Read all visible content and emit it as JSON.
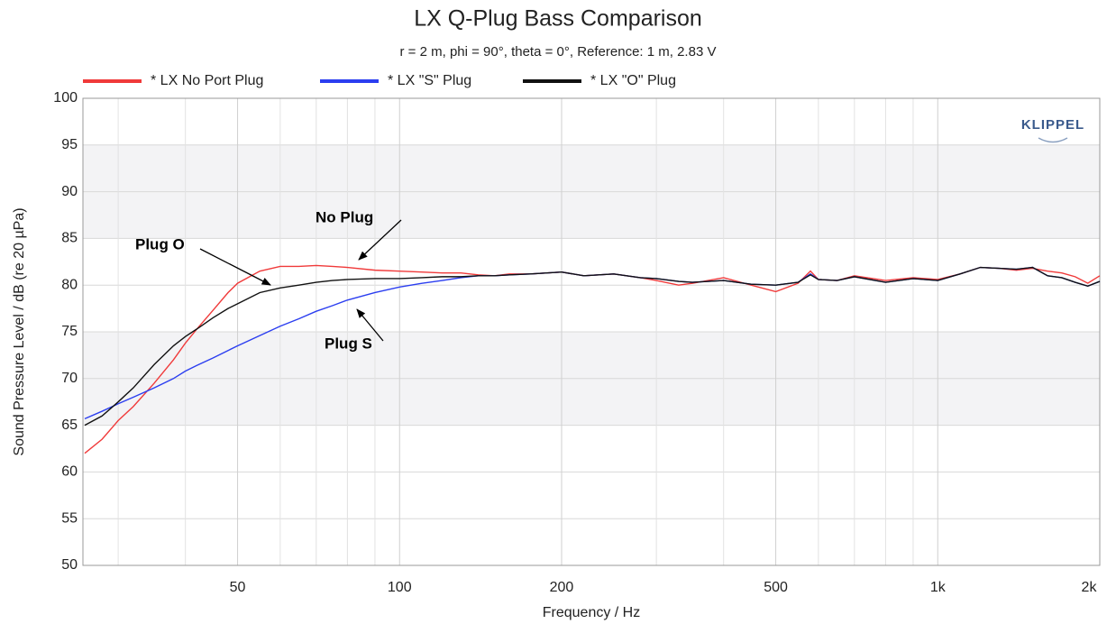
{
  "chart_data": {
    "type": "line",
    "title": "LX Q-Plug Bass Comparison",
    "subtitle": "r = 2 m, phi = 90°, theta = 0°, Reference: 1 m, 2.83 V",
    "x_label": "Frequency / Hz",
    "y_label": "Sound Pressure Level / dB (re 20 µPa)",
    "logo": "KLIPPEL",
    "log_x": true,
    "grid": true,
    "bands": [
      [
        85,
        95
      ],
      [
        65,
        75
      ]
    ],
    "xlim": [
      25.8,
      2000
    ],
    "ylim": [
      50,
      100
    ],
    "xticks": [
      50,
      100,
      200,
      500,
      {
        "value": 1000,
        "label": "1k"
      },
      {
        "value": 2000,
        "label": "2k"
      }
    ],
    "xminor": [
      30,
      40,
      60,
      70,
      80,
      90,
      300,
      400,
      600,
      700,
      800,
      900
    ],
    "yticks": [
      50,
      55,
      60,
      65,
      70,
      75,
      80,
      85,
      90,
      95,
      100
    ],
    "x": [
      26,
      28,
      30,
      32,
      35,
      38,
      40,
      42,
      45,
      48,
      50,
      55,
      60,
      65,
      70,
      75,
      80,
      90,
      100,
      110,
      120,
      130,
      140,
      150,
      160,
      175,
      200,
      220,
      250,
      280,
      300,
      330,
      350,
      400,
      450,
      500,
      550,
      580,
      600,
      650,
      700,
      800,
      900,
      1000,
      1100,
      1200,
      1300,
      1400,
      1500,
      1600,
      1700,
      1800,
      1900,
      2000
    ],
    "series": [
      {
        "name": "* LX No Port Plug",
        "color": "#f03a3a",
        "values": [
          62,
          63.5,
          65.5,
          67,
          69.5,
          72,
          73.8,
          75.3,
          77.3,
          79.2,
          80.2,
          81.5,
          82,
          82,
          82.1,
          82,
          81.9,
          81.6,
          81.5,
          81.4,
          81.3,
          81.3,
          81.1,
          81.0,
          81.2,
          81.2,
          81.4,
          81.0,
          81.2,
          80.8,
          80.5,
          80.0,
          80.2,
          80.8,
          80.0,
          79.3,
          80.2,
          81.5,
          80.6,
          80.5,
          81.0,
          80.5,
          80.8,
          80.6,
          81.2,
          81.9,
          81.8,
          81.6,
          81.8,
          81.5,
          81.3,
          80.9,
          80.2,
          81.0
        ]
      },
      {
        "name": "* LX \"S\" Plug",
        "color": "#2b3ef0",
        "values": [
          65.7,
          66.5,
          67.3,
          68,
          69,
          70,
          70.8,
          71.4,
          72.2,
          73,
          73.5,
          74.6,
          75.6,
          76.4,
          77.2,
          77.8,
          78.4,
          79.2,
          79.8,
          80.2,
          80.5,
          80.8,
          81,
          81,
          81.1,
          81.2,
          81.4,
          81.0,
          81.2,
          80.8,
          80.7,
          80.4,
          80.3,
          80.5,
          80.1,
          80.0,
          80.3,
          81.2,
          80.6,
          80.5,
          80.9,
          80.3,
          80.7,
          80.5,
          81.2,
          81.9,
          81.8,
          81.7,
          81.9,
          81.0,
          80.8,
          80.3,
          79.9,
          80.4
        ]
      },
      {
        "name": "* LX \"O\" Plug",
        "color": "#111111",
        "values": [
          65,
          66,
          67.5,
          69,
          71.5,
          73.5,
          74.5,
          75.3,
          76.5,
          77.5,
          78,
          79.2,
          79.7,
          80.0,
          80.3,
          80.5,
          80.6,
          80.7,
          80.7,
          80.8,
          80.9,
          80.9,
          81,
          81,
          81.1,
          81.2,
          81.4,
          81.0,
          81.2,
          80.8,
          80.7,
          80.4,
          80.3,
          80.5,
          80.1,
          80.0,
          80.3,
          81.1,
          80.6,
          80.5,
          80.9,
          80.3,
          80.7,
          80.5,
          81.2,
          81.9,
          81.8,
          81.7,
          81.9,
          81.0,
          80.8,
          80.3,
          79.9,
          80.4
        ]
      }
    ],
    "annotations": [
      "No Plug",
      "Plug O",
      "Plug S"
    ]
  }
}
